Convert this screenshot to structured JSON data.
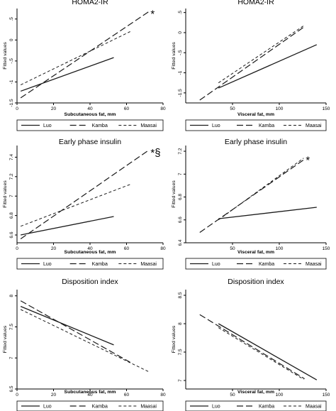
{
  "chart_data": [
    {
      "type": "line",
      "title": "HOMA2-IR",
      "xlabel": "Subcutaneous fat, mm",
      "ylabel": "Fitted values",
      "xlim": [
        0,
        80
      ],
      "ylim": [
        -1.5,
        0.75
      ],
      "x_ticks": [
        "0",
        "20",
        "40",
        "60",
        "80"
      ],
      "y_ticks": [
        "-1.5",
        "-1",
        "-.5",
        "0",
        ".5"
      ],
      "y_tick_values": [
        -1.5,
        -1,
        -0.5,
        0,
        0.5
      ],
      "annotation": "*",
      "legend": [
        "Luo",
        "Kamba",
        "Maasai"
      ],
      "series": [
        {
          "name": "Luo",
          "x": [
            2,
            53
          ],
          "values": [
            -1.22,
            -0.42
          ]
        },
        {
          "name": "Kamba",
          "x": [
            2,
            72
          ],
          "values": [
            -1.38,
            0.67
          ]
        },
        {
          "name": "Maasai",
          "x": [
            2,
            62
          ],
          "values": [
            -1.07,
            0.2
          ]
        }
      ]
    },
    {
      "type": "line",
      "title": "HOMA2-IR",
      "xlabel": "Visceral fat, mm",
      "ylabel": "Fitted values",
      "xlim": [
        0,
        150
      ],
      "ylim": [
        -1.75,
        0.6
      ],
      "x_ticks": [
        "50",
        "100",
        "150"
      ],
      "x_tick_values": [
        50,
        100,
        150
      ],
      "y_ticks": [
        "-1.5",
        "-1",
        "-.5",
        "0",
        ".5"
      ],
      "y_tick_values": [
        -1.5,
        -1,
        -0.5,
        0,
        0.5
      ],
      "legend": [
        "Luo",
        "Kamba",
        "Maasai"
      ],
      "series": [
        {
          "name": "Luo",
          "x": [
            35,
            140
          ],
          "values": [
            -1.38,
            -0.3
          ]
        },
        {
          "name": "Kamba",
          "x": [
            15,
            127
          ],
          "values": [
            -1.68,
            0.15
          ]
        },
        {
          "name": "Maasai",
          "x": [
            35,
            126
          ],
          "values": [
            -1.25,
            0.17
          ]
        }
      ]
    },
    {
      "type": "line",
      "title": "Early phase insulin",
      "xlabel": "Subcutaneous fat, mm",
      "ylabel": "Fitted values",
      "xlim": [
        0,
        80
      ],
      "ylim": [
        6.52,
        7.52
      ],
      "x_ticks": [
        "0",
        "20",
        "40",
        "60",
        "80"
      ],
      "y_ticks": [
        "6.6",
        "6.8",
        "7",
        "7.2",
        "7.4"
      ],
      "y_tick_values": [
        6.6,
        6.8,
        7,
        7.2,
        7.4
      ],
      "annotation": "*§",
      "legend": [
        "Luo",
        "Kamba",
        "Maasai"
      ],
      "series": [
        {
          "name": "Luo",
          "x": [
            2,
            53
          ],
          "values": [
            6.6,
            6.79
          ]
        },
        {
          "name": "Kamba",
          "x": [
            2,
            72
          ],
          "values": [
            6.56,
            7.47
          ]
        },
        {
          "name": "Maasai",
          "x": [
            2,
            62
          ],
          "values": [
            6.69,
            7.12
          ]
        }
      ]
    },
    {
      "type": "line",
      "title": "Early phase insulin",
      "xlabel": "Visceral fat, mm",
      "ylabel": "Fitted values",
      "xlim": [
        0,
        150
      ],
      "ylim": [
        6.4,
        7.25
      ],
      "x_ticks": [
        "50",
        "100",
        "150"
      ],
      "x_tick_values": [
        50,
        100,
        150
      ],
      "y_ticks": [
        "6.4",
        "6.6",
        "6.8",
        "7",
        "7.2"
      ],
      "y_tick_values": [
        6.4,
        6.6,
        6.8,
        7,
        7.2
      ],
      "annotation": "*",
      "legend": [
        "Luo",
        "Kamba",
        "Maasai"
      ],
      "series": [
        {
          "name": "Luo",
          "x": [
            35,
            140
          ],
          "values": [
            6.61,
            6.71
          ]
        },
        {
          "name": "Kamba",
          "x": [
            15,
            127
          ],
          "values": [
            6.49,
            7.13
          ]
        },
        {
          "name": "Maasai",
          "x": [
            35,
            126
          ],
          "values": [
            6.6,
            7.14
          ]
        }
      ]
    },
    {
      "type": "line",
      "title": "Disposition index",
      "xlabel": "Subcutaneous fat, mm",
      "ylabel": "Fitted values",
      "xlim": [
        0,
        80
      ],
      "ylim": [
        6.5,
        8.1
      ],
      "x_ticks": [
        "0",
        "20",
        "40",
        "60",
        "80"
      ],
      "y_ticks": [
        "6.5",
        "7",
        "7.5",
        "8"
      ],
      "y_tick_values": [
        6.5,
        7,
        7.5,
        8
      ],
      "legend": [
        "Luo",
        "Kamba",
        "Maasai"
      ],
      "series": [
        {
          "name": "Luo",
          "x": [
            2,
            53
          ],
          "values": [
            7.83,
            7.21
          ]
        },
        {
          "name": "Kamba",
          "x": [
            2,
            62
          ],
          "values": [
            7.92,
            6.93
          ]
        },
        {
          "name": "Maasai",
          "x": [
            2,
            72
          ],
          "values": [
            7.78,
            6.78
          ]
        }
      ]
    },
    {
      "type": "line",
      "title": "Disposition index",
      "xlabel": "Visceral fat, mm",
      "ylabel": "Fitted values",
      "xlim": [
        0,
        150
      ],
      "ylim": [
        6.85,
        8.6
      ],
      "x_ticks": [
        "50",
        "100",
        "150"
      ],
      "x_tick_values": [
        50,
        100,
        150
      ],
      "y_ticks": [
        "7",
        "7.5",
        "8",
        "8.5"
      ],
      "y_tick_values": [
        7,
        7.5,
        8,
        8.5
      ],
      "legend": [
        "Luo",
        "Kamba",
        "Maasai"
      ],
      "series": [
        {
          "name": "Luo",
          "x": [
            35,
            140
          ],
          "values": [
            8.0,
            7.01
          ]
        },
        {
          "name": "Kamba",
          "x": [
            15,
            127
          ],
          "values": [
            8.16,
            7.03
          ]
        },
        {
          "name": "Maasai",
          "x": [
            35,
            126
          ],
          "values": [
            7.93,
            7.02
          ]
        }
      ]
    }
  ]
}
